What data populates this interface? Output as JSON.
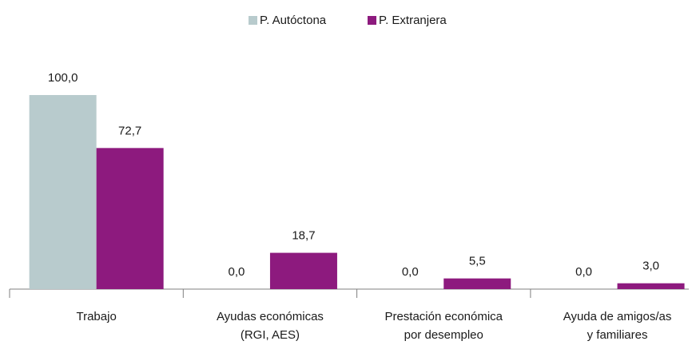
{
  "chart_data": {
    "type": "bar",
    "categories": [
      [
        "Trabajo"
      ],
      [
        "Ayudas económicas",
        "(RGI, AES)"
      ],
      [
        "Prestación económica",
        "por desempleo"
      ],
      [
        "Ayuda de amigos/as",
        "y familiares"
      ]
    ],
    "series": [
      {
        "name": "P. Autóctona",
        "color": "#b8cbcd",
        "values": [
          100.0,
          0.0,
          0.0,
          0.0
        ],
        "value_labels": [
          "100,0",
          "0,0",
          "0,0",
          "0,0"
        ]
      },
      {
        "name": "P. Extranjera",
        "color": "#8d1a7e",
        "values": [
          72.7,
          18.7,
          5.5,
          3.0
        ],
        "value_labels": [
          "72,7",
          "18,7",
          "5,5",
          "3,0"
        ]
      }
    ],
    "ylim": [
      0,
      100
    ],
    "legend": "top"
  }
}
